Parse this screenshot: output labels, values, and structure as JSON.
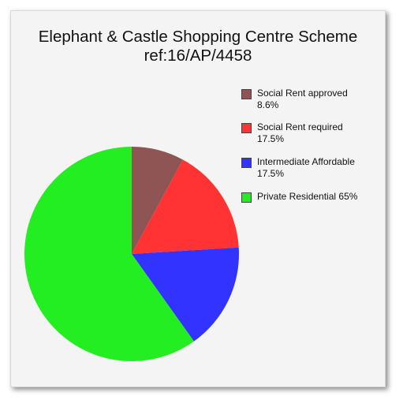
{
  "chart_data": {
    "type": "pie",
    "title_line1": "Elephant & Castle Shopping Centre Scheme",
    "title_line2": "ref:16/AP/4458",
    "slices": [
      {
        "label": "Social Rent approved",
        "value_text": "8.6%",
        "value": 8.6,
        "color": "#8f5555"
      },
      {
        "label": "Social Rent required",
        "value_text": "17.5%",
        "value": 17.5,
        "color": "#ff3333"
      },
      {
        "label": "Intermediate Affordable",
        "value_text": "17.5%",
        "value": 17.5,
        "color": "#3333ff"
      },
      {
        "label": "Private Residential",
        "value_text": "65%",
        "value": 65,
        "color": "#22ee22"
      }
    ],
    "legend_position": "right"
  }
}
